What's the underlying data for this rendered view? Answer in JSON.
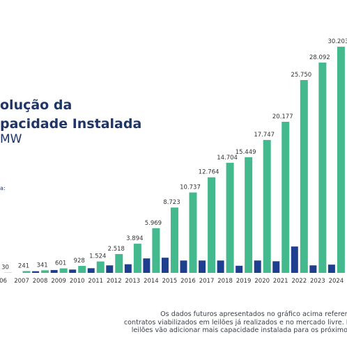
{
  "chart_data": {
    "type": "bar",
    "title_lines": [
      "olução da",
      "pacidade Instalada"
    ],
    "unit": "MW",
    "legend_fragment": "a:",
    "categories": [
      "06",
      "2007",
      "2008",
      "2009",
      "2010",
      "2011",
      "2012",
      "2013",
      "2014",
      "2015",
      "2016",
      "2017",
      "2018",
      "2019",
      "2020",
      "2021",
      "2022",
      "2023",
      "2024"
    ],
    "series": [
      {
        "values": [
          30,
          241,
          341,
          601,
          928,
          1524,
          2518,
          3894,
          5969,
          8723,
          10737,
          12764,
          14704,
          15449,
          17747,
          20177,
          25750,
          28092,
          30203
        ]
      },
      {
        "values": [
          null,
          0,
          220,
          380,
          440,
          620,
          1000,
          1150,
          1930,
          2025,
          1650,
          1650,
          1650,
          950,
          1650,
          1550,
          3520,
          1000,
          1100
        ]
      }
    ],
    "value_labels": [
      "30",
      "241",
      "341",
      "601",
      "928",
      "1.524",
      "2.518",
      "3.894",
      "5.969",
      "8.723",
      "10.737",
      "12.764",
      "14.704",
      "15.449",
      "17.747",
      "20.177",
      "25.750",
      "28.092",
      "30.203"
    ],
    "ylim": [
      0,
      33000
    ],
    "colors": {
      "total": "#45b98e",
      "annual": "#1e3f8e",
      "text": "#333333"
    }
  },
  "note": {
    "lines": [
      "Os dados futuros apresentados no gráfico acima referem",
      "contratos viabilizados em leilões já realizados e no mercado livre. N",
      "leilões vão adicionar mais capacidade instalada para os próximos"
    ]
  }
}
